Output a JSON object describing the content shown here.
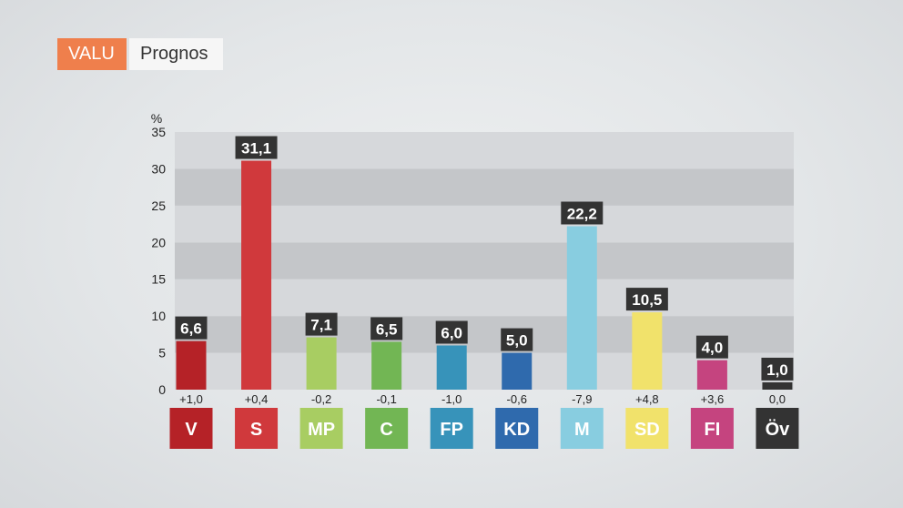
{
  "header": {
    "tag": "VALU",
    "subtitle": "Prognos"
  },
  "chart_data": {
    "type": "bar",
    "title": "",
    "xlabel": "",
    "ylabel": "%",
    "ylim": [
      0,
      35
    ],
    "yticks": [
      0,
      5,
      10,
      15,
      20,
      25,
      30,
      35
    ],
    "grid": "alternating horizontal bands",
    "categories": [
      "V",
      "S",
      "MP",
      "C",
      "FP",
      "KD",
      "M",
      "SD",
      "FI",
      "Öv"
    ],
    "values": [
      6.6,
      31.1,
      7.1,
      6.5,
      6.0,
      5.0,
      22.2,
      10.5,
      4.0,
      1.0
    ],
    "value_labels": [
      "6,6",
      "31,1",
      "7,1",
      "6,5",
      "6,0",
      "5,0",
      "22,2",
      "10,5",
      "4,0",
      "1,0"
    ],
    "changes": [
      "+1,0",
      "+0,4",
      "-0,2",
      "-0,1",
      "-1,0",
      "-0,6",
      "-7,9",
      "+4,8",
      "+3,6",
      "0,0"
    ],
    "colors": [
      "#b52227",
      "#d0393c",
      "#a8cd62",
      "#72b654",
      "#3793ba",
      "#2f6aad",
      "#88cde0",
      "#f1e26b",
      "#c5447f",
      "#333333"
    ]
  }
}
